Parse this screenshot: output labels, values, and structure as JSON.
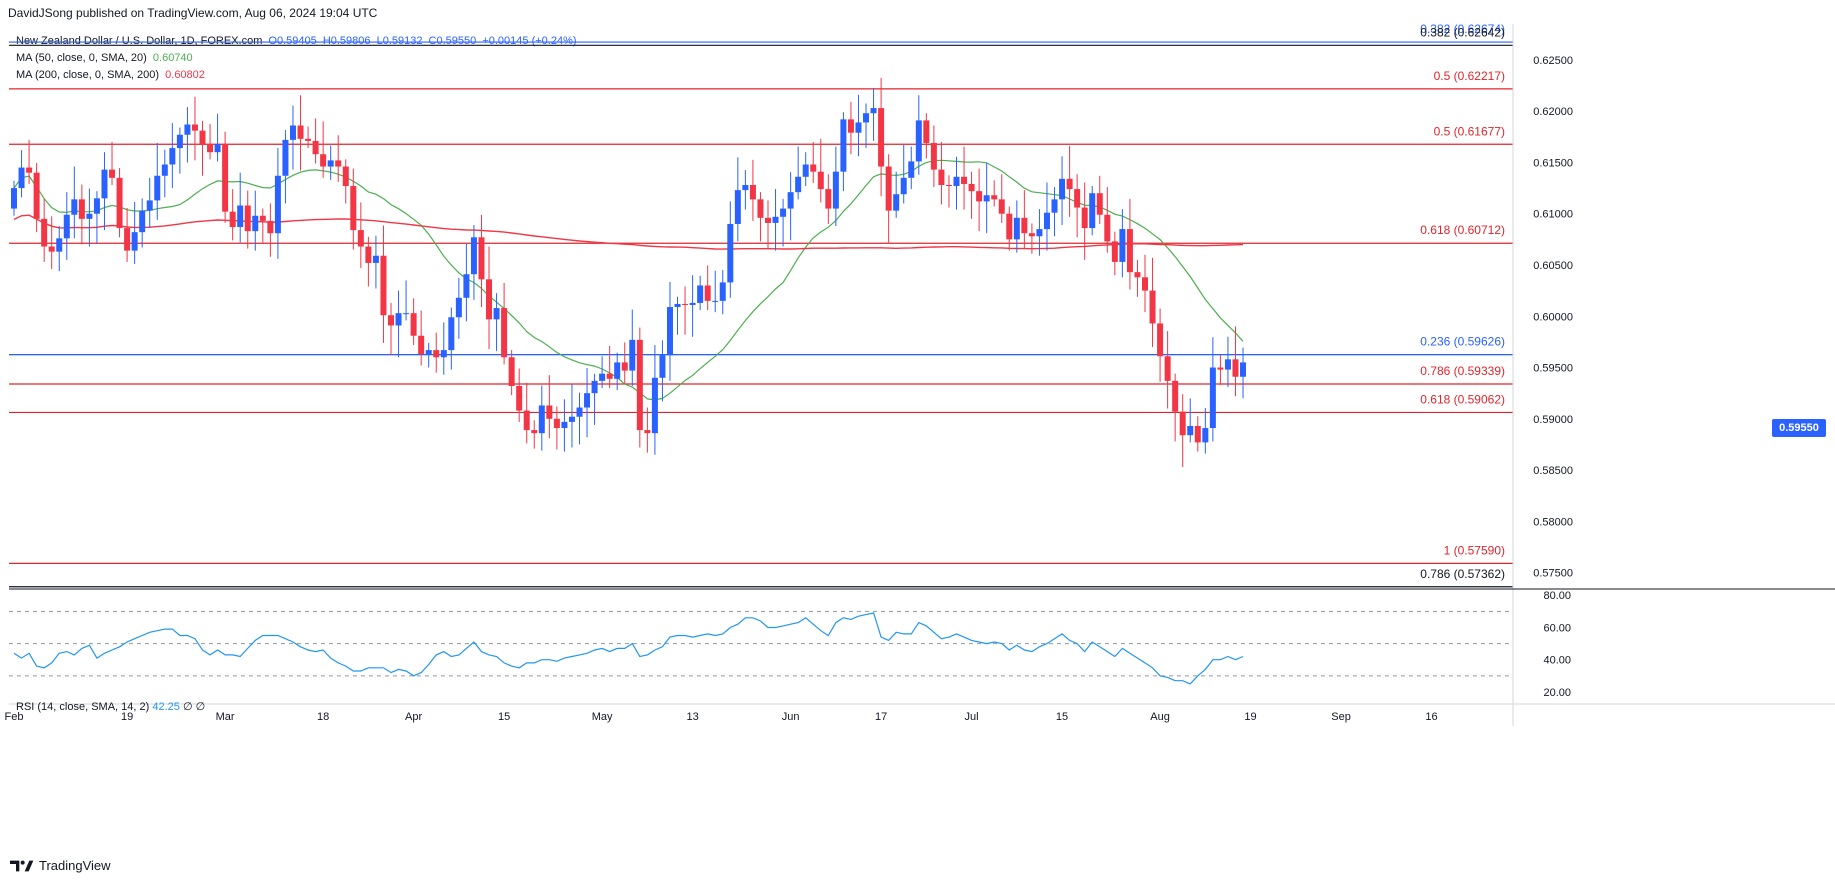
{
  "header": {
    "published": "DavidJSong published on TradingView.com, Aug 06, 2024 19:04 UTC"
  },
  "legend": {
    "symbol": "New Zealand Dollar / U.S. Dollar, 1D, FOREX.com",
    "open": "O0.59405",
    "high": "H0.59806",
    "low": "L0.59132",
    "close": "C0.59550",
    "change": "+0.00145 (+0.24%)",
    "ma50_label": "MA (50, close, 0, SMA, 20)",
    "ma50_value": "0.60740",
    "ma200_label": "MA (200, close, 0, SMA, 200)",
    "ma200_value": "0.60802"
  },
  "rsi_legend": {
    "label": "RSI (14, close, SMA, 14, 2)",
    "value": "42.25",
    "extra1": "∅",
    "extra2": "∅"
  },
  "current_price": "0.59550",
  "brand": "TradingView",
  "colors": {
    "up": "#2962ff",
    "down": "#f23645",
    "ma50": "#4caf50",
    "ma200": "#f23645",
    "rsi": "#2196f3",
    "fib_red": "#e0242b",
    "fib_blue": "#2962ff",
    "fib_dark": "#131722"
  },
  "chart_data": {
    "type": "candlestick",
    "price_axis": [
      "0.62500",
      "0.62000",
      "0.61500",
      "0.61000",
      "0.60500",
      "0.60000",
      "0.59500",
      "0.59000",
      "0.58500",
      "0.58000",
      "0.57500"
    ],
    "price_ticks": [
      0.625,
      0.62,
      0.615,
      0.61,
      0.605,
      0.6,
      0.595,
      0.59,
      0.585,
      0.58,
      0.575
    ],
    "ylim": [
      0.5735,
      0.6285
    ],
    "x_labels": [
      "Feb",
      "19",
      "Mar",
      "18",
      "Apr",
      "15",
      "May",
      "13",
      "Jun",
      "17",
      "Jul",
      "15",
      "Aug",
      "19",
      "Sep",
      "16"
    ],
    "x_label_bar_index": [
      0,
      15,
      28,
      41,
      53,
      65,
      78,
      90,
      103,
      115,
      127,
      139,
      152,
      164,
      176,
      188
    ],
    "fib_levels": [
      {
        "label": "0.382 (0.62674)",
        "value": 0.62674,
        "color": "blue",
        "label_side": "right"
      },
      {
        "label": "0.382 (0.62642)",
        "value": 0.62642,
        "color": "dark",
        "label_side": "right"
      },
      {
        "label": "0.5 (0.62217)",
        "value": 0.62217,
        "color": "red",
        "label_side": "right"
      },
      {
        "label": "0.5 (0.61677)",
        "value": 0.61677,
        "color": "red",
        "label_side": "right"
      },
      {
        "label": "0.618 (0.60712)",
        "value": 0.60712,
        "color": "red",
        "label_side": "right"
      },
      {
        "label": "0.236 (0.59626)",
        "value": 0.59626,
        "color": "blue",
        "label_side": "right"
      },
      {
        "label": "0.786 (0.59339)",
        "value": 0.59339,
        "color": "red",
        "label_side": "right"
      },
      {
        "label": "0.618 (0.59062)",
        "value": 0.59062,
        "color": "red",
        "label_side": "right"
      },
      {
        "label": "1 (0.57590)",
        "value": 0.5759,
        "color": "red",
        "label_side": "right"
      },
      {
        "label": "0.786 (0.57362)",
        "value": 0.57362,
        "color": "dark",
        "label_side": "right"
      }
    ],
    "candles_close": [
      0.6125,
      0.6145,
      0.614,
      0.6095,
      0.6068,
      0.6063,
      0.6076,
      0.6099,
      0.6114,
      0.6095,
      0.61,
      0.6115,
      0.6143,
      0.6135,
      0.6086,
      0.6064,
      0.6082,
      0.6103,
      0.6113,
      0.6137,
      0.6148,
      0.6164,
      0.6177,
      0.6187,
      0.6181,
      0.6168,
      0.616,
      0.6168,
      0.6102,
      0.6087,
      0.6108,
      0.6083,
      0.6098,
      0.6093,
      0.6081,
      0.6137,
      0.6172,
      0.6186,
      0.6173,
      0.6171,
      0.6158,
      0.6146,
      0.6152,
      0.6146,
      0.6127,
      0.6084,
      0.6068,
      0.6052,
      0.6059,
      0.6001,
      0.5991,
      0.6003,
      0.6003,
      0.5981,
      0.5963,
      0.5967,
      0.596,
      0.5967,
      0.5999,
      0.6018,
      0.6041,
      0.6077,
      0.6036,
      0.5997,
      0.6008,
      0.596,
      0.5932,
      0.5908,
      0.5889,
      0.5886,
      0.5913,
      0.59,
      0.5891,
      0.5897,
      0.5902,
      0.5911,
      0.5925,
      0.5937,
      0.5944,
      0.5939,
      0.5955,
      0.5947,
      0.5977,
      0.5889,
      0.5886,
      0.594,
      0.5962,
      0.6009,
      0.6012,
      0.6011,
      0.6013,
      0.603,
      0.6015,
      0.6015,
      0.6033,
      0.609,
      0.6123,
      0.6128,
      0.6114,
      0.6096,
      0.6091,
      0.6097,
      0.6105,
      0.6121,
      0.6136,
      0.6148,
      0.6141,
      0.6124,
      0.6105,
      0.6141,
      0.6192,
      0.6179,
      0.6189,
      0.6198,
      0.6203,
      0.6146,
      0.6103,
      0.6119,
      0.6135,
      0.6151,
      0.6191,
      0.6169,
      0.6143,
      0.6128,
      0.6127,
      0.6136,
      0.6129,
      0.6122,
      0.6112,
      0.6118,
      0.6114,
      0.61,
      0.6075,
      0.6096,
      0.6081,
      0.6078,
      0.6085,
      0.6101,
      0.6114,
      0.6134,
      0.6124,
      0.6106,
      0.6086,
      0.612,
      0.6099,
      0.6073,
      0.6053,
      0.6085,
      0.6043,
      0.6038,
      0.6025,
      0.5993,
      0.5961,
      0.5937,
      0.5907,
      0.5884,
      0.5893,
      0.5877,
      0.5891,
      0.595,
      0.5948,
      0.5958,
      0.5941,
      0.5955
    ],
    "rsi_axis": [
      "80.00",
      "60.00",
      "40.00",
      "20.00"
    ],
    "rsi_ticks": [
      80,
      60,
      40,
      20
    ],
    "rsi_ylim": [
      15,
      82
    ],
    "rsi_values": [
      44,
      41,
      44,
      36,
      35,
      38,
      44,
      45,
      43,
      47,
      49,
      41,
      44,
      46,
      48,
      51,
      53,
      55,
      57,
      58,
      59,
      59,
      55,
      55,
      53,
      46,
      43,
      46,
      43,
      43,
      42,
      47,
      52,
      55,
      55,
      55,
      53,
      51,
      48,
      46,
      45,
      46,
      41,
      38,
      36,
      33,
      33,
      35,
      35,
      35,
      32,
      34,
      33,
      30,
      32,
      37,
      43,
      45,
      42,
      43,
      47,
      51,
      45,
      43,
      42,
      38,
      36,
      35,
      38,
      38,
      40,
      40,
      39,
      41,
      42,
      43,
      44,
      46,
      47,
      45,
      47,
      47,
      50,
      42,
      43,
      46,
      48,
      54,
      55,
      55,
      54,
      55,
      56,
      55,
      56,
      60,
      62,
      66,
      66,
      64,
      60,
      60,
      61,
      62,
      63,
      66,
      62,
      58,
      55,
      63,
      66,
      65,
      67,
      68,
      69,
      54,
      52,
      57,
      56,
      56,
      63,
      61,
      57,
      53,
      54,
      56,
      54,
      52,
      51,
      50,
      51,
      50,
      46,
      49,
      46,
      45,
      48,
      50,
      53,
      56,
      52,
      50,
      45,
      51,
      48,
      45,
      42,
      47,
      44,
      41,
      38,
      35,
      30,
      29,
      27,
      27,
      25,
      30,
      34,
      40,
      40,
      42,
      40,
      42
    ],
    "rsi_levels": [
      70,
      50,
      30
    ]
  }
}
